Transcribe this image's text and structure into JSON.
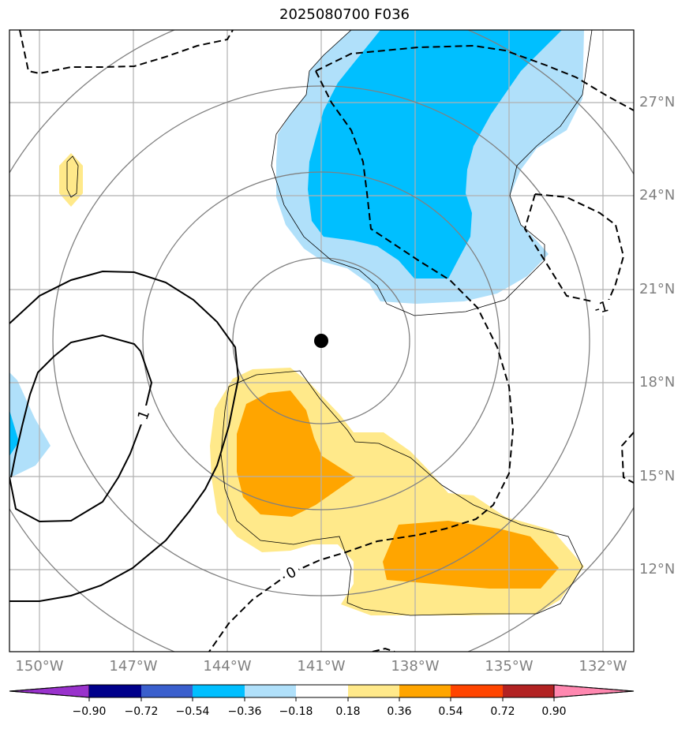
{
  "title": "2025080700 F036",
  "lat_labels": [
    "27°N",
    "24°N",
    "21°N",
    "18°N",
    "15°N",
    "12°N"
  ],
  "lon_labels": [
    "150°W",
    "147°W",
    "144°W",
    "141°W",
    "138°W",
    "135°W",
    "132°W"
  ],
  "colorbar": {
    "colors": [
      "#9932cc",
      "#00008b",
      "#3a5fcd",
      "#00bfff",
      "#b0e0fa",
      "#ffffff",
      "#ffe98a",
      "#ffa500",
      "#ff4500",
      "#b22222",
      "#ff88b0"
    ],
    "ticks": [
      "−0.90",
      "−0.72",
      "−0.54",
      "−0.36",
      "−0.18",
      "0.18",
      "0.36",
      "0.54",
      "0.72",
      "0.90"
    ]
  },
  "contour_labels": {
    "solid_one": "1",
    "zero": "0",
    "dashed_minus_one": "-1"
  },
  "center_marker": {
    "lon": -141.0,
    "lat": 19.3
  }
}
